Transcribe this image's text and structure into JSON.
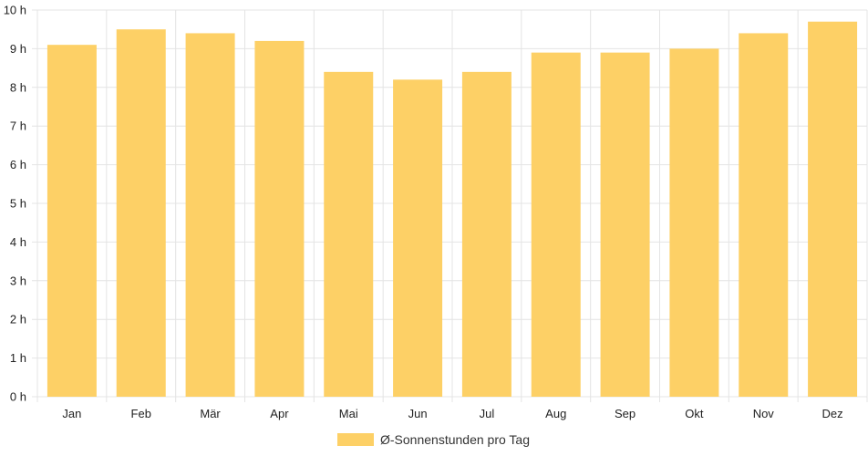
{
  "chart_data": {
    "type": "bar",
    "categories": [
      "Jan",
      "Feb",
      "Mär",
      "Apr",
      "Mai",
      "Jun",
      "Jul",
      "Aug",
      "Sep",
      "Okt",
      "Nov",
      "Dez"
    ],
    "series": [
      {
        "name": "Ø-Sonnenstunden pro Tag",
        "values": [
          9.1,
          9.5,
          9.4,
          9.2,
          8.4,
          8.2,
          8.4,
          8.9,
          8.9,
          9.0,
          9.4,
          9.7
        ],
        "color": "#fdd066"
      }
    ],
    "ylim": [
      0,
      10
    ],
    "yticks": [
      "0 h",
      "1 h",
      "2 h",
      "3 h",
      "4 h",
      "5 h",
      "6 h",
      "7 h",
      "8 h",
      "9 h",
      "10 h"
    ],
    "grid": true,
    "legend_position": "bottom"
  }
}
